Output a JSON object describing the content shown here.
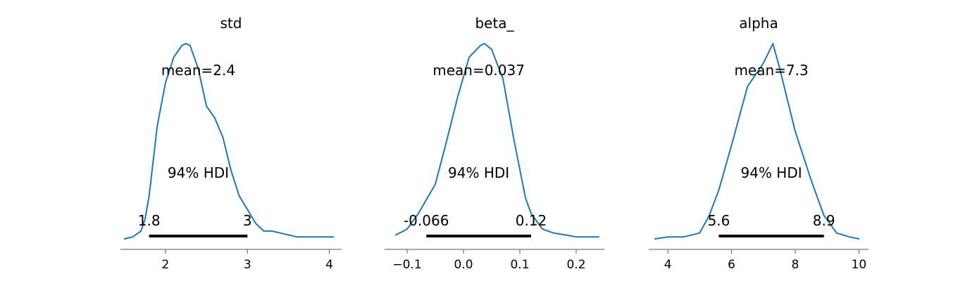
{
  "chart_data": [
    {
      "type": "area",
      "title": "std",
      "xlim": [
        1.45,
        4.15
      ],
      "x_ticks": [
        2,
        3,
        4
      ],
      "x_tick_labels": [
        "2",
        "3",
        "4"
      ],
      "curve_color": "#1f77b4",
      "density": {
        "x": [
          1.5,
          1.6,
          1.7,
          1.75,
          1.8,
          1.85,
          1.9,
          2.0,
          2.1,
          2.2,
          2.25,
          2.3,
          2.4,
          2.5,
          2.6,
          2.7,
          2.8,
          2.9,
          3.0,
          3.1,
          3.2,
          3.3,
          3.4,
          3.5,
          3.6,
          3.8,
          4.05
        ],
        "y": [
          0.0,
          0.01,
          0.04,
          0.1,
          0.22,
          0.4,
          0.58,
          0.8,
          0.93,
          0.99,
          1.0,
          0.99,
          0.87,
          0.68,
          0.62,
          0.52,
          0.35,
          0.22,
          0.15,
          0.08,
          0.04,
          0.04,
          0.03,
          0.02,
          0.01,
          0.01,
          0.01
        ]
      },
      "mean_label": "mean=2.4",
      "hdi_label": "94% HDI",
      "hdi": [
        1.8,
        3.0
      ],
      "hdi_low_label": "1.8",
      "hdi_high_label": "3"
    },
    {
      "type": "area",
      "title": "beta_",
      "xlim": [
        -0.14,
        0.25
      ],
      "x_ticks": [
        -0.1,
        0.0,
        0.1,
        0.2
      ],
      "x_tick_labels": [
        "−0.1",
        "0.0",
        "0.1",
        "0.2"
      ],
      "curve_color": "#1f77b4",
      "density": {
        "x": [
          -0.12,
          -0.1,
          -0.08,
          -0.066,
          -0.05,
          -0.03,
          -0.01,
          0.01,
          0.03,
          0.037,
          0.05,
          0.07,
          0.09,
          0.11,
          0.12,
          0.14,
          0.16,
          0.18,
          0.2,
          0.22,
          0.24
        ],
        "y": [
          0.02,
          0.05,
          0.13,
          0.2,
          0.28,
          0.5,
          0.73,
          0.93,
          0.99,
          1.0,
          0.97,
          0.82,
          0.5,
          0.21,
          0.13,
          0.05,
          0.03,
          0.02,
          0.01,
          0.01,
          0.01
        ]
      },
      "mean_label": "mean=0.037",
      "hdi_label": "94% HDI",
      "hdi": [
        -0.066,
        0.12
      ],
      "hdi_low_label": "-0.066",
      "hdi_high_label": "0.12"
    },
    {
      "type": "area",
      "title": "alpha",
      "xlim": [
        3.4,
        10.3
      ],
      "x_ticks": [
        4,
        6,
        8,
        10
      ],
      "x_tick_labels": [
        "4",
        "6",
        "8",
        "10"
      ],
      "curve_color": "#1f77b4",
      "density": {
        "x": [
          3.6,
          4.0,
          4.5,
          5.0,
          5.3,
          5.6,
          6.0,
          6.5,
          7.0,
          7.3,
          7.5,
          8.0,
          8.5,
          8.9,
          9.3,
          9.7,
          10.0
        ],
        "y": [
          0.0,
          0.01,
          0.01,
          0.03,
          0.12,
          0.25,
          0.48,
          0.78,
          0.9,
          1.0,
          0.88,
          0.55,
          0.3,
          0.12,
          0.03,
          0.01,
          0.0
        ]
      },
      "mean_label": "mean=7.3",
      "hdi_label": "94% HDI",
      "hdi": [
        5.6,
        8.9
      ],
      "hdi_low_label": "5.6",
      "hdi_high_label": "8.9"
    }
  ]
}
